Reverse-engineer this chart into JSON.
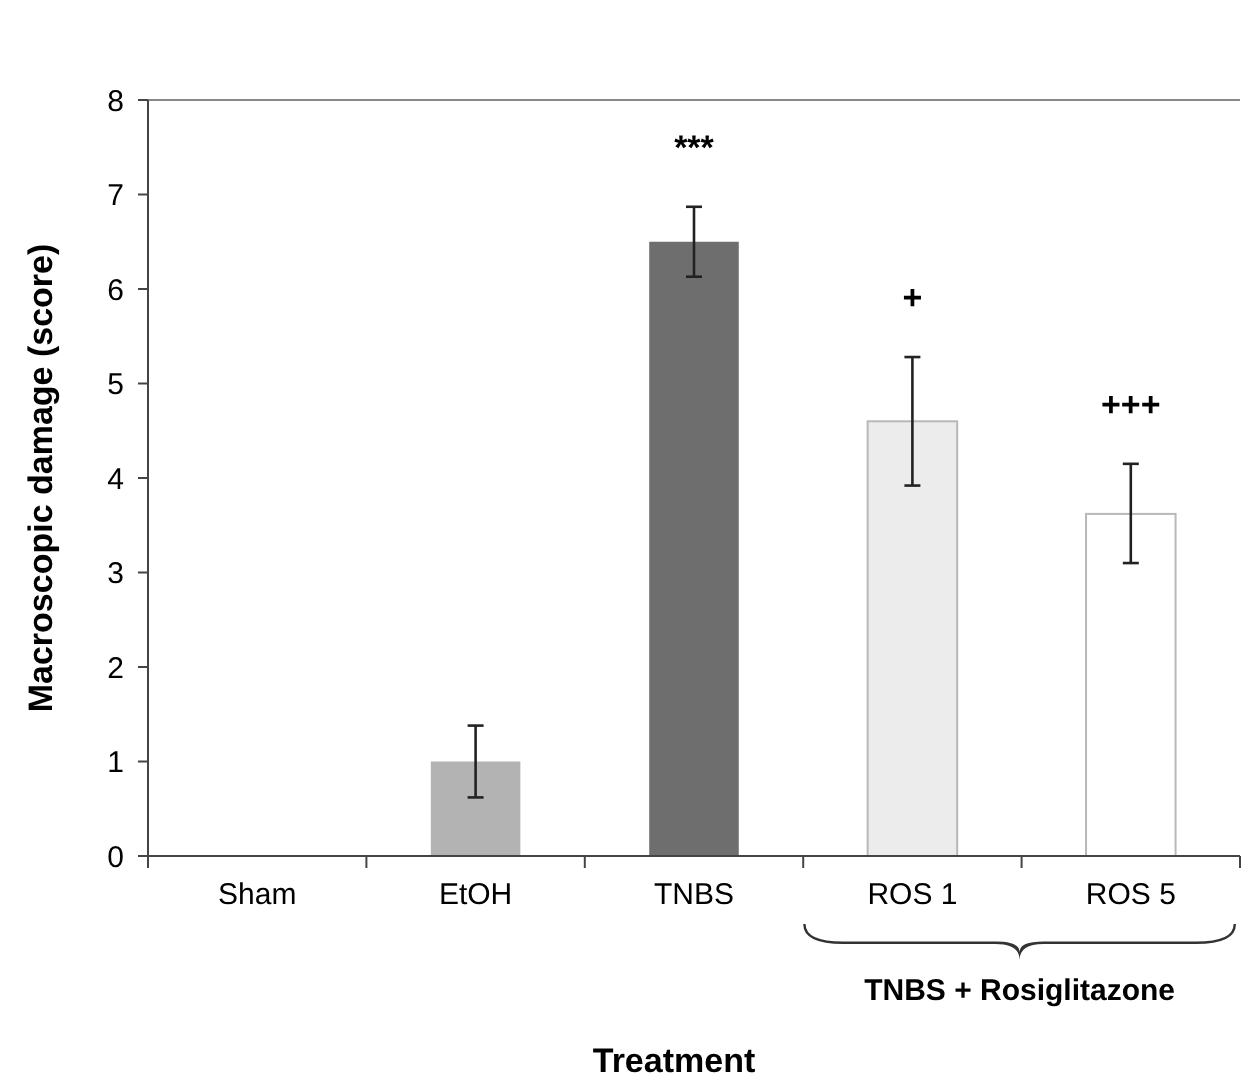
{
  "chart_data": {
    "type": "bar",
    "xlabel": "Treatment",
    "ylabel": "Macroscopic damage (score)",
    "categories": [
      "Sham",
      "EtOH",
      "TNBS",
      "ROS 1",
      "ROS 5"
    ],
    "values": [
      0,
      1.0,
      6.5,
      4.6,
      3.62
    ],
    "colors": [
      "#b3b3b3",
      "#b3b3b3",
      "#6e6e6e",
      "#ececec",
      "#ffffff"
    ],
    "errors": [
      null,
      [
        0.62,
        1.38
      ],
      [
        6.13,
        6.87
      ],
      [
        3.92,
        5.28
      ],
      [
        3.1,
        4.15
      ]
    ],
    "ylim": [
      0,
      8
    ],
    "yticks": [
      0,
      1,
      2,
      3,
      4,
      5,
      6,
      7,
      8
    ],
    "grid": false,
    "annotations": [
      "***",
      "+",
      "+++",
      "TNBS + Rosiglitazone"
    ]
  }
}
